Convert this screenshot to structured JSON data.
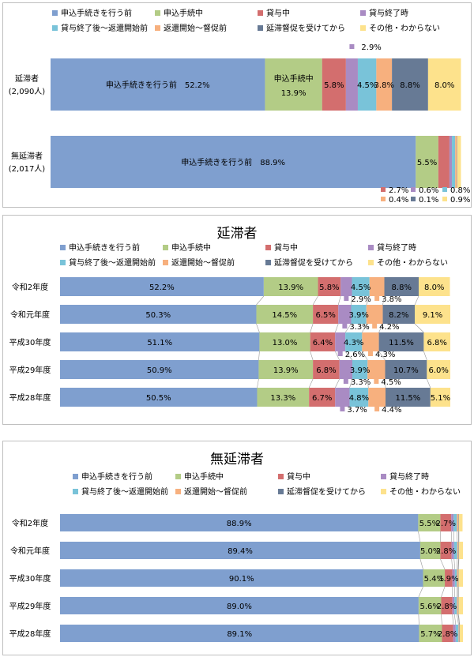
{
  "colors": [
    "#7f9fcf",
    "#b3cc86",
    "#d36e6e",
    "#a98bc3",
    "#79c3d9",
    "#f7b07e",
    "#677a95",
    "#fde28c"
  ],
  "legend": [
    "申込手続きを行う前",
    "申込手続中",
    "貸与中",
    "貸与終了時",
    "貸与終了後～返還開始前",
    "返還開始～督促前",
    "延滞督促を受けてから",
    "その他・わからない"
  ],
  "chart_data": [
    {
      "type": "bar",
      "stacked": true,
      "orientation": "horizontal",
      "title": "",
      "categories": [
        "延滞者",
        "無延滞者"
      ],
      "category_counts": [
        "(2,090人)",
        "(2,017人)"
      ],
      "series_names_ref": "legend",
      "values": [
        [
          52.2,
          13.9,
          5.8,
          2.9,
          4.5,
          3.8,
          8.8,
          8.0
        ],
        [
          88.9,
          5.5,
          2.7,
          0.6,
          0.8,
          0.4,
          0.1,
          0.9
        ]
      ],
      "labels": [
        [
          "申込手続きを行う前　52.2%",
          "申込手続中|13.9%",
          "5.8%",
          "2.9%",
          "4.5%",
          "3.8%",
          "8.8%",
          "8.0%"
        ],
        [
          "申込手続きを行う前　88.9%",
          "5.5%",
          "2.7%",
          "0.6%",
          "0.8%",
          "0.4%",
          "0.1%",
          "0.9%"
        ]
      ],
      "xlim": [
        0,
        100
      ]
    },
    {
      "type": "bar",
      "stacked": true,
      "orientation": "horizontal",
      "title": "延滞者",
      "categories": [
        "令和2年度",
        "令和元年度",
        "平成30年度",
        "平成29年度",
        "平成28年度"
      ],
      "series_names_ref": "legend",
      "values": [
        [
          52.2,
          13.9,
          5.8,
          2.9,
          4.5,
          3.8,
          8.8,
          8.0
        ],
        [
          50.3,
          14.5,
          6.5,
          3.3,
          3.9,
          4.2,
          8.2,
          9.1
        ],
        [
          51.1,
          13.0,
          6.4,
          2.6,
          4.3,
          4.3,
          11.5,
          6.8
        ],
        [
          50.9,
          13.9,
          6.8,
          3.3,
          3.9,
          4.5,
          10.7,
          6.0
        ],
        [
          50.5,
          13.3,
          6.7,
          3.7,
          4.8,
          4.4,
          11.5,
          5.1
        ]
      ],
      "xlim": [
        0,
        100
      ]
    },
    {
      "type": "bar",
      "stacked": true,
      "orientation": "horizontal",
      "title": "無延滞者",
      "categories": [
        "令和2年度",
        "令和元年度",
        "平成30年度",
        "平成29年度",
        "平成28年度"
      ],
      "series_names_ref": "legend",
      "values": [
        [
          88.9,
          5.5,
          2.7,
          0.6,
          0.8,
          0.4,
          0.1,
          0.9
        ],
        [
          89.4,
          5.0,
          2.8,
          0.6,
          0.8,
          0.3,
          0.1,
          1.0
        ],
        [
          90.1,
          5.4,
          1.9,
          0.6,
          0.5,
          0.3,
          0.1,
          1.1
        ],
        [
          89.0,
          5.6,
          2.8,
          0.5,
          0.6,
          0.3,
          0.1,
          1.1
        ],
        [
          89.1,
          5.7,
          2.8,
          0.6,
          0.7,
          0.2,
          0.1,
          0.8
        ]
      ],
      "xlim": [
        0,
        100
      ]
    }
  ]
}
